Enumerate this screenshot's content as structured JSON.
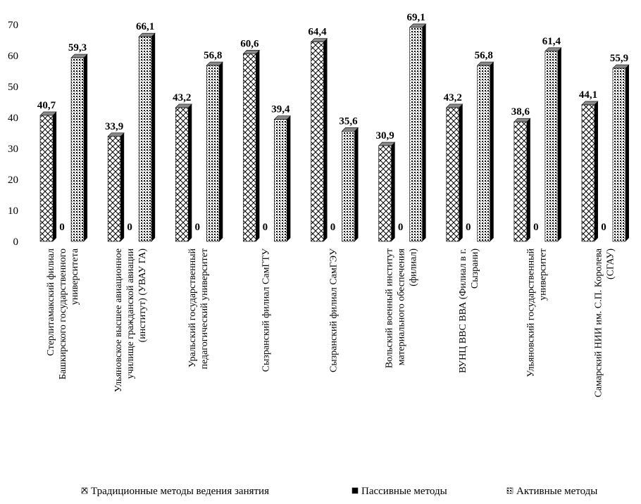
{
  "chart_data": {
    "type": "bar",
    "title": "",
    "xlabel": "",
    "ylabel": "",
    "ylim": [
      0,
      70
    ],
    "yticks": [
      0,
      10,
      20,
      30,
      40,
      50,
      60,
      70
    ],
    "grid": false,
    "legend_position": "bottom",
    "categories": [
      [
        "Стерлитамакский филиал",
        "Башкирского государственного",
        "университета"
      ],
      [
        "Ульяновское высшее авиационное",
        "училище гражданской авиации",
        "(институт) (УВАУ ГА)"
      ],
      [
        "Уральский государственный",
        "педагогический университет"
      ],
      [
        "Сызранский филиал СамГТУ"
      ],
      [
        "Сызранский филиал СамГЭУ"
      ],
      [
        "Вольский военный институт",
        "материального обеспечения",
        "(филиал)"
      ],
      [
        "ВУНЦ ВВС ВВА (Филиал в г.",
        "Сызрани)"
      ],
      [
        "Ульяновский государственный",
        "университет"
      ],
      [
        "Самарский НИИ им. С.П. Королева",
        "(СГАУ)"
      ]
    ],
    "series": [
      {
        "name": "Традиционные методы ведения занятия",
        "values": [
          40.7,
          33.9,
          43.2,
          60.6,
          64.4,
          30.9,
          43.2,
          38.6,
          44.1
        ],
        "labels": [
          "40,7",
          "33,9",
          "43,2",
          "60,6",
          "64,4",
          "30,9",
          "43,2",
          "38,6",
          "44,1"
        ]
      },
      {
        "name": "Пассивные методы",
        "values": [
          0,
          0,
          0,
          0,
          0,
          0,
          0,
          0,
          0
        ],
        "labels": [
          "0",
          "0",
          "0",
          "0",
          "0",
          "0",
          "0",
          "0",
          "0"
        ]
      },
      {
        "name": "Активные методы",
        "values": [
          59.3,
          66.1,
          56.8,
          39.4,
          35.6,
          69.1,
          56.8,
          61.4,
          55.9
        ],
        "labels": [
          "59,3",
          "66,1",
          "56,8",
          "39,4",
          "35,6",
          "69,1",
          "56,8",
          "61,4",
          "55,9"
        ]
      }
    ]
  }
}
